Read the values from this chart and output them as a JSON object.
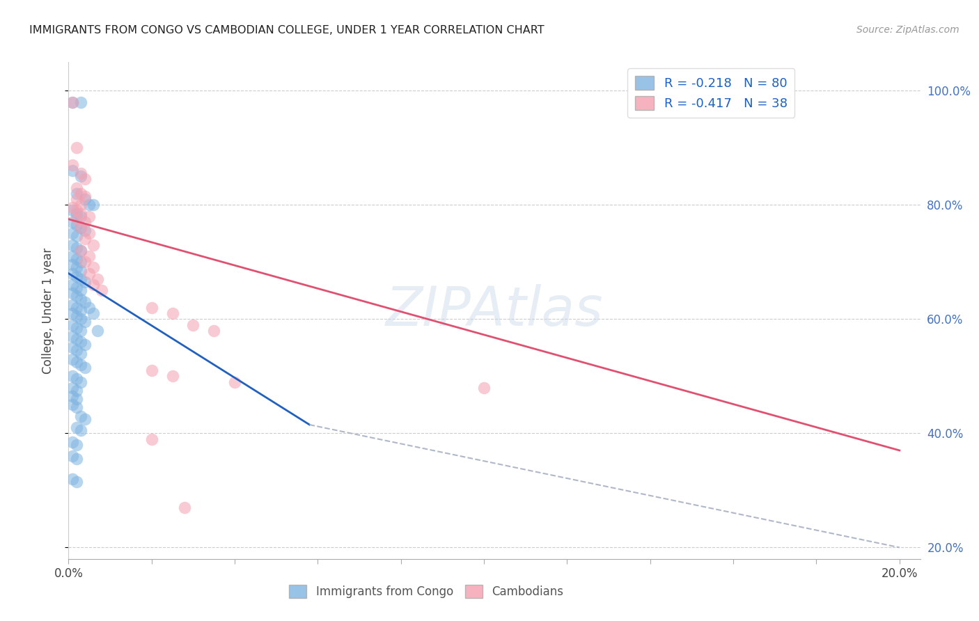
{
  "title": "IMMIGRANTS FROM CONGO VS CAMBODIAN COLLEGE, UNDER 1 YEAR CORRELATION CHART",
  "source": "Source: ZipAtlas.com",
  "ylabel": "College, Under 1 year",
  "legend_entry1": "R = -0.218   N = 80",
  "legend_entry2": "R = -0.417   N = 38",
  "legend_label1": "Immigrants from Congo",
  "legend_label2": "Cambodians",
  "watermark": "ZIPAtlas",
  "color_blue": "#7eb3e0",
  "color_pink": "#f4a0b0",
  "color_trend_blue": "#2060c0",
  "color_trend_pink": "#e05070",
  "color_trend_dash": "#b0b8c8",
  "background": "#ffffff",
  "blue_points": [
    [
      0.001,
      0.98
    ],
    [
      0.003,
      0.98
    ],
    [
      0.001,
      0.86
    ],
    [
      0.003,
      0.85
    ],
    [
      0.002,
      0.82
    ],
    [
      0.004,
      0.81
    ],
    [
      0.005,
      0.8
    ],
    [
      0.006,
      0.8
    ],
    [
      0.001,
      0.79
    ],
    [
      0.002,
      0.785
    ],
    [
      0.003,
      0.78
    ],
    [
      0.001,
      0.77
    ],
    [
      0.002,
      0.765
    ],
    [
      0.003,
      0.76
    ],
    [
      0.004,
      0.755
    ],
    [
      0.001,
      0.75
    ],
    [
      0.002,
      0.745
    ],
    [
      0.001,
      0.73
    ],
    [
      0.002,
      0.725
    ],
    [
      0.003,
      0.72
    ],
    [
      0.001,
      0.71
    ],
    [
      0.002,
      0.705
    ],
    [
      0.003,
      0.7
    ],
    [
      0.001,
      0.695
    ],
    [
      0.002,
      0.69
    ],
    [
      0.003,
      0.685
    ],
    [
      0.001,
      0.68
    ],
    [
      0.002,
      0.675
    ],
    [
      0.003,
      0.67
    ],
    [
      0.004,
      0.665
    ],
    [
      0.001,
      0.66
    ],
    [
      0.002,
      0.655
    ],
    [
      0.003,
      0.65
    ],
    [
      0.001,
      0.645
    ],
    [
      0.002,
      0.64
    ],
    [
      0.003,
      0.635
    ],
    [
      0.004,
      0.63
    ],
    [
      0.001,
      0.625
    ],
    [
      0.002,
      0.62
    ],
    [
      0.003,
      0.615
    ],
    [
      0.001,
      0.61
    ],
    [
      0.002,
      0.605
    ],
    [
      0.003,
      0.6
    ],
    [
      0.004,
      0.595
    ],
    [
      0.001,
      0.59
    ],
    [
      0.002,
      0.585
    ],
    [
      0.003,
      0.58
    ],
    [
      0.001,
      0.57
    ],
    [
      0.002,
      0.565
    ],
    [
      0.003,
      0.56
    ],
    [
      0.004,
      0.555
    ],
    [
      0.001,
      0.55
    ],
    [
      0.002,
      0.545
    ],
    [
      0.003,
      0.54
    ],
    [
      0.001,
      0.53
    ],
    [
      0.002,
      0.525
    ],
    [
      0.003,
      0.52
    ],
    [
      0.004,
      0.515
    ],
    [
      0.005,
      0.62
    ],
    [
      0.006,
      0.61
    ],
    [
      0.007,
      0.58
    ],
    [
      0.001,
      0.5
    ],
    [
      0.002,
      0.495
    ],
    [
      0.003,
      0.49
    ],
    [
      0.001,
      0.48
    ],
    [
      0.002,
      0.475
    ],
    [
      0.001,
      0.465
    ],
    [
      0.002,
      0.46
    ],
    [
      0.001,
      0.45
    ],
    [
      0.002,
      0.445
    ],
    [
      0.003,
      0.43
    ],
    [
      0.004,
      0.425
    ],
    [
      0.002,
      0.41
    ],
    [
      0.003,
      0.405
    ],
    [
      0.001,
      0.385
    ],
    [
      0.002,
      0.38
    ],
    [
      0.001,
      0.36
    ],
    [
      0.002,
      0.355
    ],
    [
      0.001,
      0.32
    ],
    [
      0.002,
      0.315
    ]
  ],
  "pink_points": [
    [
      0.001,
      0.98
    ],
    [
      0.002,
      0.9
    ],
    [
      0.001,
      0.87
    ],
    [
      0.003,
      0.855
    ],
    [
      0.004,
      0.845
    ],
    [
      0.002,
      0.83
    ],
    [
      0.003,
      0.82
    ],
    [
      0.004,
      0.815
    ],
    [
      0.002,
      0.81
    ],
    [
      0.003,
      0.8
    ],
    [
      0.001,
      0.795
    ],
    [
      0.002,
      0.79
    ],
    [
      0.003,
      0.785
    ],
    [
      0.005,
      0.78
    ],
    [
      0.002,
      0.775
    ],
    [
      0.004,
      0.77
    ],
    [
      0.003,
      0.76
    ],
    [
      0.005,
      0.75
    ],
    [
      0.004,
      0.74
    ],
    [
      0.006,
      0.73
    ],
    [
      0.003,
      0.72
    ],
    [
      0.005,
      0.71
    ],
    [
      0.004,
      0.7
    ],
    [
      0.006,
      0.69
    ],
    [
      0.005,
      0.68
    ],
    [
      0.007,
      0.67
    ],
    [
      0.006,
      0.66
    ],
    [
      0.008,
      0.65
    ],
    [
      0.02,
      0.62
    ],
    [
      0.025,
      0.61
    ],
    [
      0.03,
      0.59
    ],
    [
      0.035,
      0.58
    ],
    [
      0.02,
      0.51
    ],
    [
      0.025,
      0.5
    ],
    [
      0.04,
      0.49
    ],
    [
      0.1,
      0.48
    ],
    [
      0.02,
      0.39
    ],
    [
      0.028,
      0.27
    ]
  ],
  "blue_trend_x": [
    0.0,
    0.058
  ],
  "blue_trend_y": [
    0.68,
    0.415
  ],
  "pink_trend_x": [
    0.0,
    0.2
  ],
  "pink_trend_y": [
    0.775,
    0.37
  ],
  "dash_trend_x": [
    0.058,
    0.2
  ],
  "dash_trend_y": [
    0.415,
    0.2
  ],
  "xlim_min": 0.0,
  "xlim_max": 0.205,
  "ylim_min": 0.18,
  "ylim_max": 1.05,
  "xtick_positions": [
    0.0,
    0.02,
    0.04,
    0.06,
    0.08,
    0.1,
    0.12,
    0.14,
    0.16,
    0.18,
    0.2
  ],
  "ytick_positions": [
    0.2,
    0.4,
    0.6,
    0.8,
    1.0
  ],
  "right_ytick_labels": [
    "20.0%",
    "40.0%",
    "60.0%",
    "80.0%",
    "100.0%"
  ]
}
